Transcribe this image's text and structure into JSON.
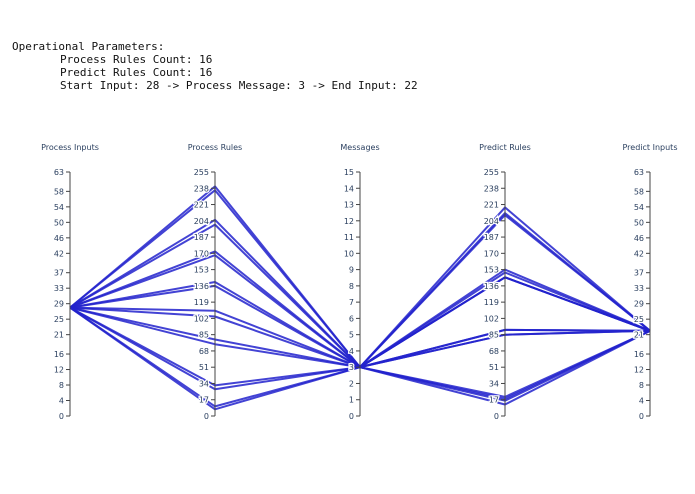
{
  "header": {
    "title": "Operational Parameters:",
    "line1": "Process Rules Count: 16",
    "line2": "Predict Rules Count: 16",
    "line3": "Start Input: 28 -> Process Message: 3 -> End Input: 22"
  },
  "chart_data": {
    "type": "parallel_coordinates",
    "line_color": "#2222cc",
    "axes": [
      {
        "name": "Process Inputs",
        "range": [
          0,
          63
        ],
        "ticks": [
          0,
          4,
          8,
          12,
          16,
          21,
          25,
          29,
          33,
          37,
          42,
          46,
          50,
          54,
          58,
          63
        ]
      },
      {
        "name": "Process Rules",
        "range": [
          0,
          255
        ],
        "ticks": [
          0,
          17,
          34,
          51,
          68,
          85,
          102,
          119,
          136,
          153,
          170,
          187,
          204,
          221,
          238,
          255
        ]
      },
      {
        "name": "Messages",
        "range": [
          0,
          15
        ],
        "ticks": [
          0,
          1,
          2,
          3,
          4,
          5,
          6,
          7,
          8,
          9,
          10,
          11,
          12,
          13,
          14,
          15
        ]
      },
      {
        "name": "Predict Rules",
        "range": [
          0,
          255
        ],
        "ticks": [
          0,
          17,
          34,
          51,
          68,
          85,
          102,
          119,
          136,
          153,
          170,
          187,
          204,
          221,
          238,
          255
        ]
      },
      {
        "name": "Predict Inputs",
        "range": [
          0,
          63
        ],
        "ticks": [
          0,
          4,
          8,
          12,
          16,
          21,
          25,
          29,
          33,
          37,
          42,
          46,
          50,
          54,
          58,
          63
        ]
      }
    ],
    "lines": [
      [
        28,
        240,
        3,
        218,
        22
      ],
      [
        28,
        236,
        3,
        210,
        22
      ],
      [
        28,
        205,
        3,
        153,
        22
      ],
      [
        28,
        200,
        3,
        145,
        22
      ],
      [
        28,
        172,
        3,
        90,
        22
      ],
      [
        28,
        168,
        3,
        85,
        22
      ],
      [
        28,
        140,
        3,
        18,
        22
      ],
      [
        28,
        136,
        3,
        12,
        22
      ],
      [
        28,
        110,
        3,
        20,
        22
      ],
      [
        28,
        104,
        3,
        16,
        22
      ],
      [
        28,
        80,
        3,
        150,
        22
      ],
      [
        28,
        75,
        3,
        145,
        22
      ],
      [
        28,
        32,
        3,
        212,
        22
      ],
      [
        28,
        28,
        3,
        90,
        22
      ],
      [
        28,
        10,
        3,
        85,
        22
      ],
      [
        28,
        7,
        3,
        145,
        22
      ]
    ]
  }
}
